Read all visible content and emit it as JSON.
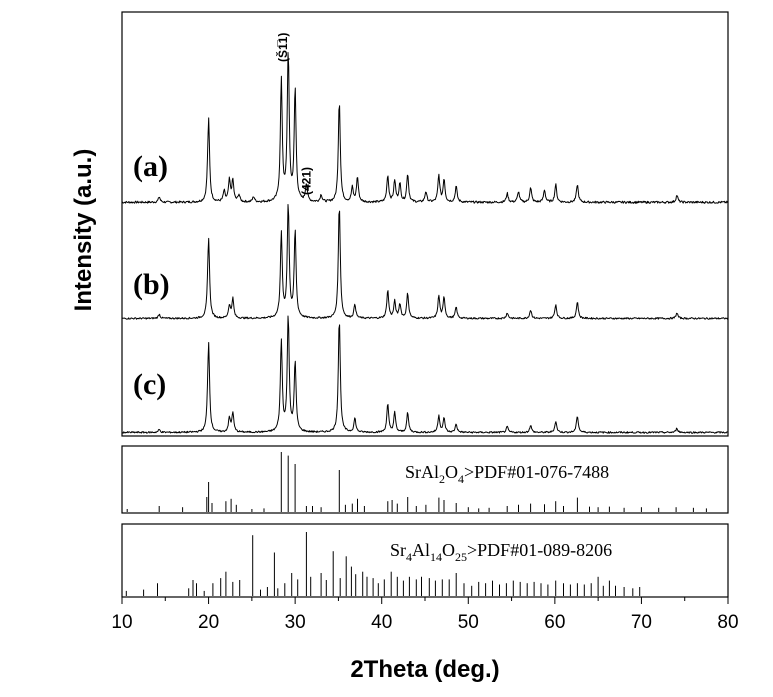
{
  "chart_data": {
    "type": "line",
    "xlabel": "2Theta (deg.)",
    "ylabel": "Intensity (a.u.)",
    "xlim": [
      10,
      80
    ],
    "xticks": [
      10,
      20,
      30,
      40,
      50,
      60,
      70,
      80
    ],
    "grid": false,
    "patterns": [
      {
        "label": "(a)",
        "peaks": [
          [
            14.3,
            0.03
          ],
          [
            20.0,
            0.47
          ],
          [
            21.8,
            0.06
          ],
          [
            22.4,
            0.12
          ],
          [
            22.8,
            0.12
          ],
          [
            23.5,
            0.04
          ],
          [
            25.2,
            0.03
          ],
          [
            28.4,
            0.68
          ],
          [
            29.2,
            0.83
          ],
          [
            30.0,
            0.63
          ],
          [
            31.3,
            0.1
          ],
          [
            33.0,
            0.04
          ],
          [
            35.1,
            0.57
          ],
          [
            36.6,
            0.08
          ],
          [
            37.2,
            0.14
          ],
          [
            40.7,
            0.15
          ],
          [
            41.5,
            0.12
          ],
          [
            42.1,
            0.1
          ],
          [
            43.0,
            0.16
          ],
          [
            45.1,
            0.06
          ],
          [
            46.6,
            0.15
          ],
          [
            47.2,
            0.13
          ],
          [
            48.6,
            0.09
          ],
          [
            54.5,
            0.05
          ],
          [
            55.8,
            0.06
          ],
          [
            57.2,
            0.08
          ],
          [
            58.8,
            0.07
          ],
          [
            60.1,
            0.1
          ],
          [
            62.6,
            0.1
          ],
          [
            74.1,
            0.04
          ]
        ],
        "annotations": [
          {
            "text": "(Š1̅1)",
            "x": 28.6
          },
          {
            "text": "(421)",
            "x": 31.3
          }
        ]
      },
      {
        "label": "(b)",
        "peaks": [
          [
            14.3,
            0.03
          ],
          [
            20.0,
            0.58
          ],
          [
            22.4,
            0.09
          ],
          [
            22.8,
            0.14
          ],
          [
            28.4,
            0.6
          ],
          [
            29.2,
            0.8
          ],
          [
            30.0,
            0.62
          ],
          [
            35.1,
            0.81
          ],
          [
            36.9,
            0.1
          ],
          [
            40.7,
            0.2
          ],
          [
            41.5,
            0.12
          ],
          [
            42.1,
            0.1
          ],
          [
            43.0,
            0.18
          ],
          [
            46.6,
            0.16
          ],
          [
            47.2,
            0.15
          ],
          [
            48.6,
            0.08
          ],
          [
            54.5,
            0.04
          ],
          [
            57.2,
            0.06
          ],
          [
            60.1,
            0.1
          ],
          [
            62.6,
            0.12
          ],
          [
            74.1,
            0.04
          ]
        ]
      },
      {
        "label": "(c)",
        "peaks": [
          [
            14.3,
            0.02
          ],
          [
            20.0,
            0.65
          ],
          [
            22.4,
            0.1
          ],
          [
            22.8,
            0.14
          ],
          [
            28.4,
            0.65
          ],
          [
            29.2,
            0.82
          ],
          [
            30.0,
            0.5
          ],
          [
            35.1,
            0.81
          ],
          [
            36.9,
            0.1
          ],
          [
            40.7,
            0.2
          ],
          [
            41.5,
            0.14
          ],
          [
            43.0,
            0.14
          ],
          [
            46.6,
            0.12
          ],
          [
            47.2,
            0.1
          ],
          [
            48.6,
            0.06
          ],
          [
            54.5,
            0.04
          ],
          [
            57.2,
            0.05
          ],
          [
            60.1,
            0.08
          ],
          [
            62.6,
            0.12
          ],
          [
            74.1,
            0.03
          ]
        ]
      }
    ],
    "references": [
      {
        "label_main": "SrAl",
        "label_sub1": "2",
        "label_mid": "O",
        "label_sub2": "4",
        "label_tail": ">PDF#01-076-7488",
        "lines": [
          [
            10.6,
            0.05
          ],
          [
            14.3,
            0.1
          ],
          [
            17.0,
            0.08
          ],
          [
            19.8,
            0.25
          ],
          [
            20.0,
            0.5
          ],
          [
            20.4,
            0.15
          ],
          [
            22.0,
            0.18
          ],
          [
            22.6,
            0.22
          ],
          [
            23.2,
            0.12
          ],
          [
            25.0,
            0.05
          ],
          [
            26.4,
            0.06
          ],
          [
            28.4,
            1.0
          ],
          [
            29.2,
            0.94
          ],
          [
            30.0,
            0.8
          ],
          [
            31.3,
            0.1
          ],
          [
            32.0,
            0.1
          ],
          [
            33.0,
            0.08
          ],
          [
            35.1,
            0.7
          ],
          [
            35.8,
            0.12
          ],
          [
            36.6,
            0.14
          ],
          [
            37.2,
            0.22
          ],
          [
            38.0,
            0.1
          ],
          [
            40.7,
            0.18
          ],
          [
            41.2,
            0.2
          ],
          [
            41.8,
            0.14
          ],
          [
            43.0,
            0.25
          ],
          [
            44.0,
            0.1
          ],
          [
            45.1,
            0.12
          ],
          [
            46.6,
            0.24
          ],
          [
            47.2,
            0.2
          ],
          [
            48.6,
            0.15
          ],
          [
            50.0,
            0.08
          ],
          [
            51.2,
            0.06
          ],
          [
            52.4,
            0.07
          ],
          [
            54.5,
            0.1
          ],
          [
            55.8,
            0.12
          ],
          [
            57.2,
            0.14
          ],
          [
            58.8,
            0.13
          ],
          [
            60.1,
            0.18
          ],
          [
            61.0,
            0.1
          ],
          [
            62.6,
            0.24
          ],
          [
            64.0,
            0.09
          ],
          [
            65.0,
            0.08
          ],
          [
            66.3,
            0.09
          ],
          [
            68.0,
            0.07
          ],
          [
            70.0,
            0.08
          ],
          [
            72.0,
            0.07
          ],
          [
            74.0,
            0.08
          ],
          [
            76.0,
            0.07
          ],
          [
            77.5,
            0.06
          ]
        ]
      },
      {
        "label_main": "Sr",
        "label_sub1": "4",
        "label_mid": "Al",
        "label_sub2": "14",
        "label_mid2": "O",
        "label_sub3": "25",
        "label_tail": ">PDF#01-089-8206",
        "lines": [
          [
            10.5,
            0.08
          ],
          [
            12.5,
            0.1
          ],
          [
            14.1,
            0.2
          ],
          [
            17.7,
            0.12
          ],
          [
            18.2,
            0.25
          ],
          [
            18.6,
            0.2
          ],
          [
            19.5,
            0.08
          ],
          [
            20.5,
            0.2
          ],
          [
            21.4,
            0.28
          ],
          [
            22.0,
            0.38
          ],
          [
            22.8,
            0.22
          ],
          [
            23.6,
            0.25
          ],
          [
            25.1,
            0.95
          ],
          [
            26.0,
            0.1
          ],
          [
            26.8,
            0.14
          ],
          [
            27.6,
            0.68
          ],
          [
            28.0,
            0.12
          ],
          [
            28.8,
            0.2
          ],
          [
            29.6,
            0.36
          ],
          [
            30.3,
            0.26
          ],
          [
            31.3,
            1.0
          ],
          [
            31.8,
            0.3
          ],
          [
            33.0,
            0.36
          ],
          [
            33.6,
            0.25
          ],
          [
            34.4,
            0.7
          ],
          [
            35.2,
            0.28
          ],
          [
            35.9,
            0.62
          ],
          [
            36.5,
            0.46
          ],
          [
            37.0,
            0.34
          ],
          [
            37.8,
            0.38
          ],
          [
            38.3,
            0.3
          ],
          [
            39.0,
            0.28
          ],
          [
            39.6,
            0.2
          ],
          [
            40.3,
            0.26
          ],
          [
            41.1,
            0.38
          ],
          [
            41.8,
            0.3
          ],
          [
            42.5,
            0.24
          ],
          [
            43.2,
            0.3
          ],
          [
            44.0,
            0.26
          ],
          [
            44.6,
            0.3
          ],
          [
            45.5,
            0.28
          ],
          [
            46.2,
            0.24
          ],
          [
            47.0,
            0.26
          ],
          [
            47.8,
            0.26
          ],
          [
            48.6,
            0.36
          ],
          [
            49.5,
            0.2
          ],
          [
            50.4,
            0.16
          ],
          [
            51.2,
            0.22
          ],
          [
            52.0,
            0.2
          ],
          [
            52.8,
            0.24
          ],
          [
            53.6,
            0.18
          ],
          [
            54.4,
            0.2
          ],
          [
            55.2,
            0.24
          ],
          [
            56.0,
            0.22
          ],
          [
            56.8,
            0.2
          ],
          [
            57.6,
            0.22
          ],
          [
            58.4,
            0.2
          ],
          [
            59.2,
            0.18
          ],
          [
            60.1,
            0.24
          ],
          [
            61.0,
            0.2
          ],
          [
            61.8,
            0.18
          ],
          [
            62.6,
            0.2
          ],
          [
            63.4,
            0.18
          ],
          [
            64.2,
            0.2
          ],
          [
            65.0,
            0.3
          ],
          [
            65.6,
            0.16
          ],
          [
            66.3,
            0.24
          ],
          [
            67.0,
            0.16
          ],
          [
            68.0,
            0.14
          ],
          [
            69.0,
            0.12
          ],
          [
            69.8,
            0.14
          ]
        ]
      }
    ]
  }
}
